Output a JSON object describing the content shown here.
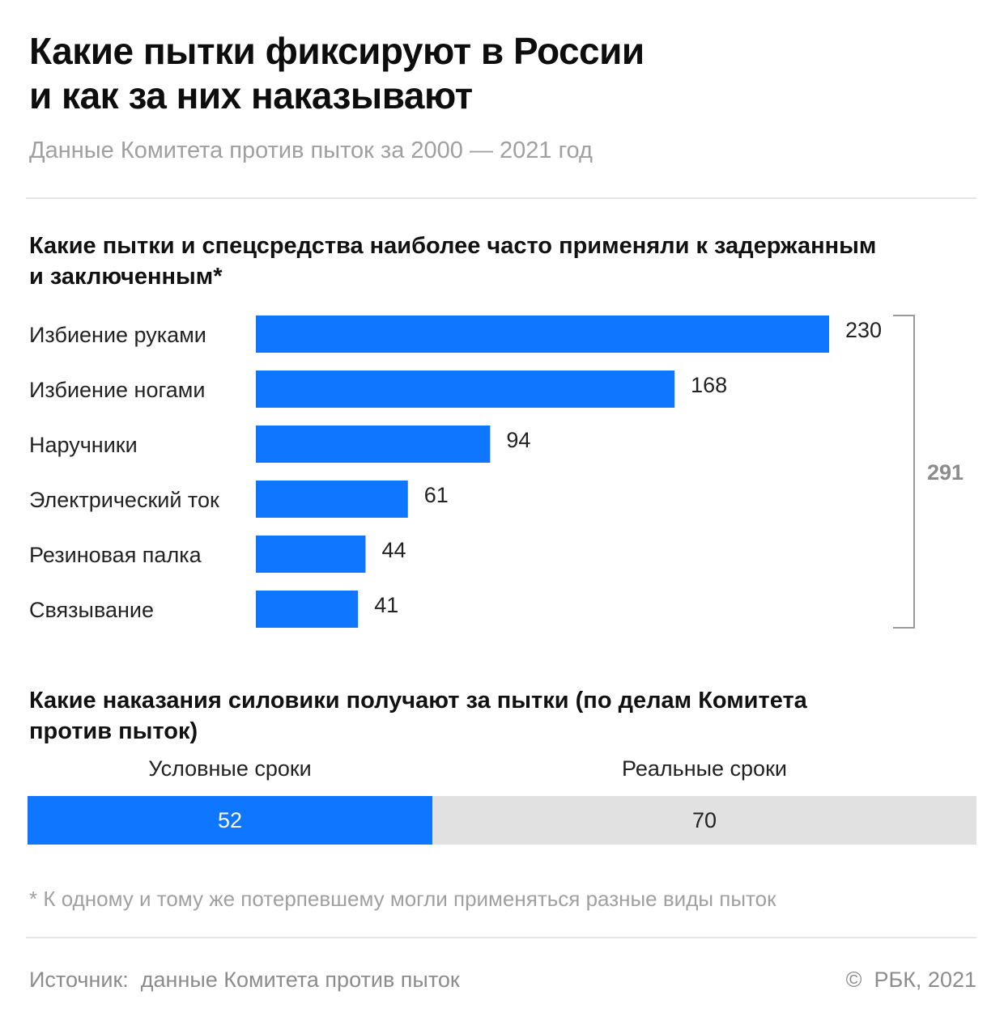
{
  "header": {
    "title_line1": "Какие пытки фиксируют в России",
    "title_line2": "и как за них наказывают",
    "subtitle": "Данные Комитета против пыток за 2000 — 2021 год"
  },
  "chart_data": [
    {
      "type": "bar",
      "orientation": "horizontal",
      "title_line1": "Какие пытки и спецсредства наиболее часто применяли к задержанным",
      "title_line2": "и заключенным*",
      "categories": [
        "Избиение руками",
        "Избиение ногами",
        "Наручники",
        "Электрический ток",
        "Резиновая палка",
        "Связывание"
      ],
      "values": [
        230,
        168,
        94,
        61,
        44,
        41
      ],
      "bracket_total": 291,
      "xlim": [
        0,
        230
      ],
      "grid": false,
      "color": "#0f77ff"
    },
    {
      "type": "bar",
      "orientation": "stacked-horizontal",
      "title_line1": "Какие наказания силовики получают за пытки (по делам Комитета",
      "title_line2": "против пыток)",
      "series": [
        {
          "name": "Условные сроки",
          "values": [
            52
          ],
          "color": "#0f77ff"
        },
        {
          "name": "Реальные сроки",
          "values": [
            70
          ],
          "color": "#e1e1e1"
        }
      ],
      "legend": "top"
    }
  ],
  "footnote": "* К одному и тому же потерпевшему могли применяться разные виды пыток",
  "footer": {
    "source": "Источник:  данные Комитета против пыток",
    "copyright": "©  РБК, 2021"
  }
}
